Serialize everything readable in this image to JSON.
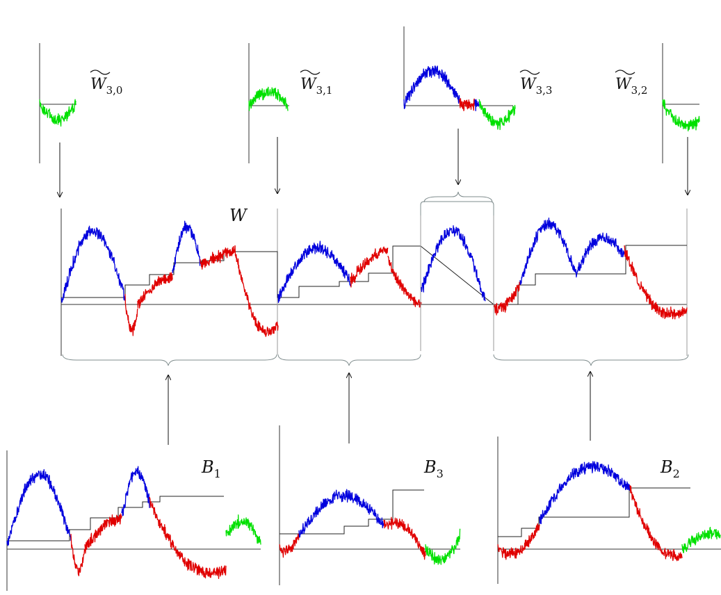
{
  "labels": {
    "top": [
      {
        "symbol": "W",
        "subscript": "3,0"
      },
      {
        "symbol": "W",
        "subscript": "3,1"
      },
      {
        "symbol": "W",
        "subscript": "3,3"
      },
      {
        "symbol": "W",
        "subscript": "3,2"
      }
    ],
    "middle": {
      "symbol": "W"
    },
    "bottom": [
      {
        "symbol": "B",
        "subscript": "1"
      },
      {
        "symbol": "B",
        "subscript": "3"
      },
      {
        "symbol": "B",
        "subscript": "2"
      }
    ]
  },
  "colors": {
    "blue": "#0000dd",
    "red": "#e00000",
    "green": "#00e000",
    "axis": "#333333",
    "brace": "#7f8c8d"
  }
}
